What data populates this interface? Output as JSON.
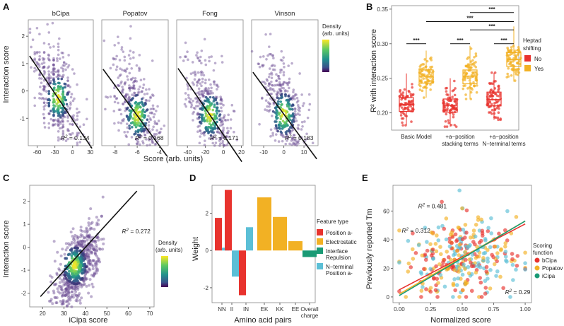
{
  "colors": {
    "point": "#6a4c93",
    "line": "#111111",
    "red": "#e8332e",
    "orange": "#f2b124",
    "green": "#1a9a75",
    "cyan": "#5bbfd6",
    "gradient": [
      "#fde725",
      "#5ec962",
      "#21918c",
      "#3b528b",
      "#440154"
    ]
  },
  "panels": {
    "A": {
      "label": "A",
      "ylabel": "Interaction score",
      "xlabel": "Score (arb. units)",
      "legend_title": "Density",
      "legend_sub": "(arb. units)",
      "subplots": [
        {
          "name": "bCipa",
          "r2": "= 0.134",
          "xticks": [
            "-60",
            "-30",
            "0",
            "30"
          ],
          "xlim": [
            -75,
            35
          ],
          "slope": -0.032,
          "intercept": -1.05,
          "center": -25
        },
        {
          "name": "Popatov",
          "r2": "= 0.168",
          "xticks": [
            "-8",
            "-6",
            "-4"
          ],
          "xlim": [
            -9.2,
            -3.2
          ],
          "slope": -0.55,
          "intercept": -4.2,
          "center": -6
        },
        {
          "name": "Fong",
          "r2": "= 0.171",
          "xticks": [
            "-40",
            "-20",
            "0",
            "20"
          ],
          "xlim": [
            -52,
            22
          ],
          "slope": -0.048,
          "intercept": -1.6,
          "center": -15
        },
        {
          "name": "Vinson",
          "r2": "= 0.183",
          "xticks": [
            "-10",
            "0",
            "10"
          ],
          "xlim": [
            -16,
            17
          ],
          "slope": -0.1,
          "intercept": -0.85,
          "center": 0
        }
      ],
      "yticks": [
        "-1",
        "0",
        "1",
        "2"
      ],
      "ylim": [
        -2,
        2.6
      ]
    },
    "B": {
      "label": "B",
      "ylabel": "R² with interaction score",
      "yticks": [
        "0.20",
        "0.25",
        "0.30",
        "0.35"
      ],
      "ylim": [
        0.175,
        0.355
      ],
      "groups": [
        "Basic Model",
        "+a−position\nstacking terms",
        "+a−position\nN−terminal terms"
      ],
      "legend_title": "Heptad\nshifting",
      "legend_items": [
        "No",
        "Yes"
      ],
      "boxes": [
        {
          "group": 0,
          "shift": "No",
          "q1": 0.202,
          "median": 0.212,
          "q3": 0.222,
          "min": 0.182,
          "max": 0.257
        },
        {
          "group": 0,
          "shift": "Yes",
          "q1": 0.243,
          "median": 0.253,
          "q3": 0.262,
          "min": 0.222,
          "max": 0.29
        },
        {
          "group": 1,
          "shift": "No",
          "q1": 0.201,
          "median": 0.211,
          "q3": 0.22,
          "min": 0.18,
          "max": 0.25
        },
        {
          "group": 1,
          "shift": "Yes",
          "q1": 0.242,
          "median": 0.253,
          "q3": 0.262,
          "min": 0.22,
          "max": 0.297
        },
        {
          "group": 2,
          "shift": "No",
          "q1": 0.21,
          "median": 0.219,
          "q3": 0.23,
          "min": 0.19,
          "max": 0.258
        },
        {
          "group": 2,
          "shift": "Yes",
          "q1": 0.267,
          "median": 0.277,
          "q3": 0.287,
          "min": 0.245,
          "max": 0.325
        }
      ],
      "sig": [
        {
          "from": 0,
          "to": 1,
          "y": 0.3,
          "label": "***"
        },
        {
          "from": 2,
          "to": 3,
          "y": 0.3,
          "label": "***"
        },
        {
          "from": 4,
          "to": 5,
          "y": 0.3,
          "label": "***"
        },
        {
          "from": 1,
          "to": 5,
          "y": 0.332,
          "label": "***"
        },
        {
          "from": 3,
          "to": 5,
          "y": 0.32,
          "label": "***"
        },
        {
          "from": 3,
          "to": 5,
          "y": 0.345,
          "label": "***"
        }
      ]
    },
    "C": {
      "label": "C",
      "ylabel": "Interaction score",
      "xlabel": "iCipa score",
      "xticks": [
        "20",
        "30",
        "40",
        "50",
        "60",
        "70"
      ],
      "yticks": [
        "-2",
        "-1",
        "0",
        "1",
        "2"
      ],
      "xlim": [
        14,
        72
      ],
      "ylim": [
        -2.6,
        2.7
      ],
      "r2": "= 0.272",
      "legend_title": "Density",
      "legend_sub": "(arb. units)"
    },
    "D": {
      "label": "D",
      "ylabel": "Weight",
      "xlabel": "Amino acid pairs",
      "yticks": [
        "-2",
        "0",
        "2"
      ],
      "ylim": [
        -2.8,
        3.5
      ],
      "legend_title": "Feature type",
      "legend_items": [
        "Position a-",
        "Electrostatic",
        "Interface\nRepulsion",
        "N−terminal\nPosition a-"
      ],
      "categories": [
        "NN",
        "II",
        "IN",
        "EK",
        "KK",
        "EE",
        "Overall\ncharge"
      ],
      "bars": [
        {
          "cat": 0,
          "type": 0,
          "value": 1.75
        },
        {
          "cat": 0,
          "type": 3,
          "value": 0.15
        },
        {
          "cat": 1,
          "type": 0,
          "value": 3.25
        },
        {
          "cat": 1,
          "type": 3,
          "value": -1.4
        },
        {
          "cat": 2,
          "type": 0,
          "value": -2.4
        },
        {
          "cat": 2,
          "type": 3,
          "value": 1.25
        },
        {
          "cat": 3,
          "type": 1,
          "value": 2.85
        },
        {
          "cat": 4,
          "type": 1,
          "value": 1.8
        },
        {
          "cat": 5,
          "type": 1,
          "value": 0.5
        },
        {
          "cat": 6,
          "type": 2,
          "value": -0.35
        }
      ]
    },
    "E": {
      "label": "E",
      "ylabel": "Previously reported Tm",
      "xlabel": "Normalized score",
      "xticks": [
        "0.00",
        "0.25",
        "0.50",
        "0.75",
        "1.00"
      ],
      "yticks": [
        "0",
        "20",
        "40",
        "60"
      ],
      "xlim": [
        -0.05,
        1.05
      ],
      "ylim": [
        -4,
        78
      ],
      "legend_title": "Scoring\nfunction",
      "legend_items": [
        "bCipa",
        "Popatov",
        "iCipa"
      ],
      "annotations": [
        {
          "text": "= 0.481",
          "x": 0.15,
          "y": 62,
          "color": "green"
        },
        {
          "text": "= 0.312",
          "x": 0.02,
          "y": 45,
          "color": "red"
        },
        {
          "text": "= 0.29",
          "x": 0.84,
          "y": 2,
          "color": "orange"
        }
      ],
      "fits": [
        {
          "name": "bCipa",
          "a": 5,
          "b": 46
        },
        {
          "name": "Popatov",
          "a": 2,
          "b": 51
        },
        {
          "name": "iCipa",
          "a": 1,
          "b": 52
        }
      ]
    }
  }
}
